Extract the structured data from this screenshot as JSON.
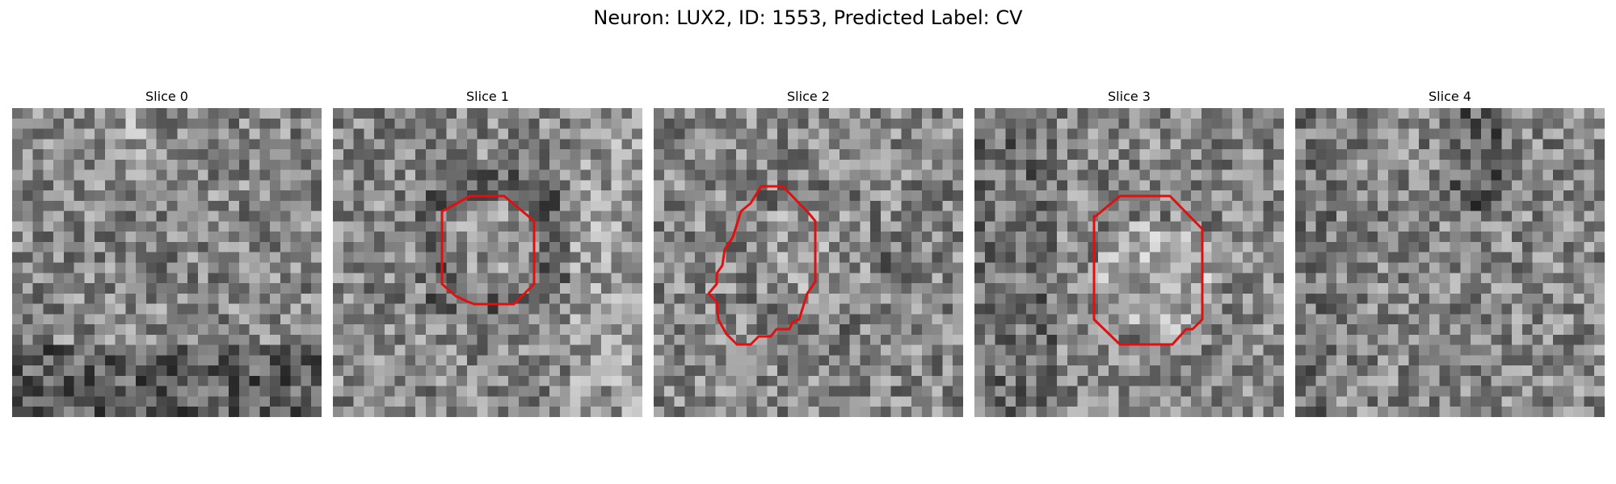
{
  "figure": {
    "title": "Neuron: LUX2, ID: 1553, Predicted Label: CV"
  },
  "slices": [
    {
      "label": "Slice 0",
      "has_roi": false
    },
    {
      "label": "Slice 1",
      "has_roi": true
    },
    {
      "label": "Slice 2",
      "has_roi": true
    },
    {
      "label": "Slice 3",
      "has_roi": true
    },
    {
      "label": "Slice 4",
      "has_roi": false
    }
  ],
  "style": {
    "roi_color": "#e01010",
    "colormap": "gray"
  }
}
